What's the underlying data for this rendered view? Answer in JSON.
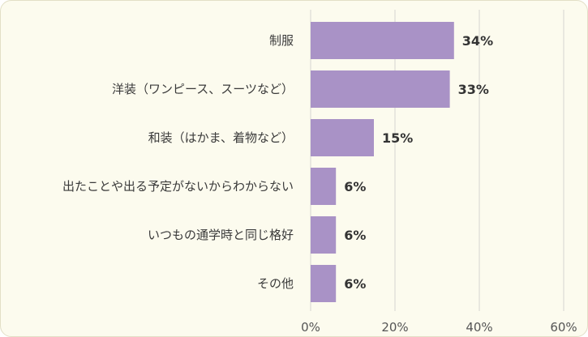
{
  "chart_data": {
    "type": "bar",
    "orientation": "horizontal",
    "categories": [
      "制服",
      "洋装（ワンピース、スーツなど）",
      "和装（はかま、着物など）",
      "出たことや出る予定がないからわからない",
      "いつもの通学時と同じ格好",
      "その他"
    ],
    "values": [
      34,
      33,
      15,
      6,
      6,
      6
    ],
    "value_labels": [
      "34%",
      "33%",
      "15%",
      "6%",
      "6%",
      "6%"
    ],
    "xlim": [
      0,
      60
    ],
    "x_ticks": [
      0,
      20,
      40,
      60
    ],
    "x_tick_labels": [
      "0%",
      "20%",
      "40%",
      "60%"
    ],
    "grid": true,
    "colors": {
      "bar": "#a992c6",
      "background": "#fcfbee",
      "grid": "#d6d6d0"
    }
  }
}
